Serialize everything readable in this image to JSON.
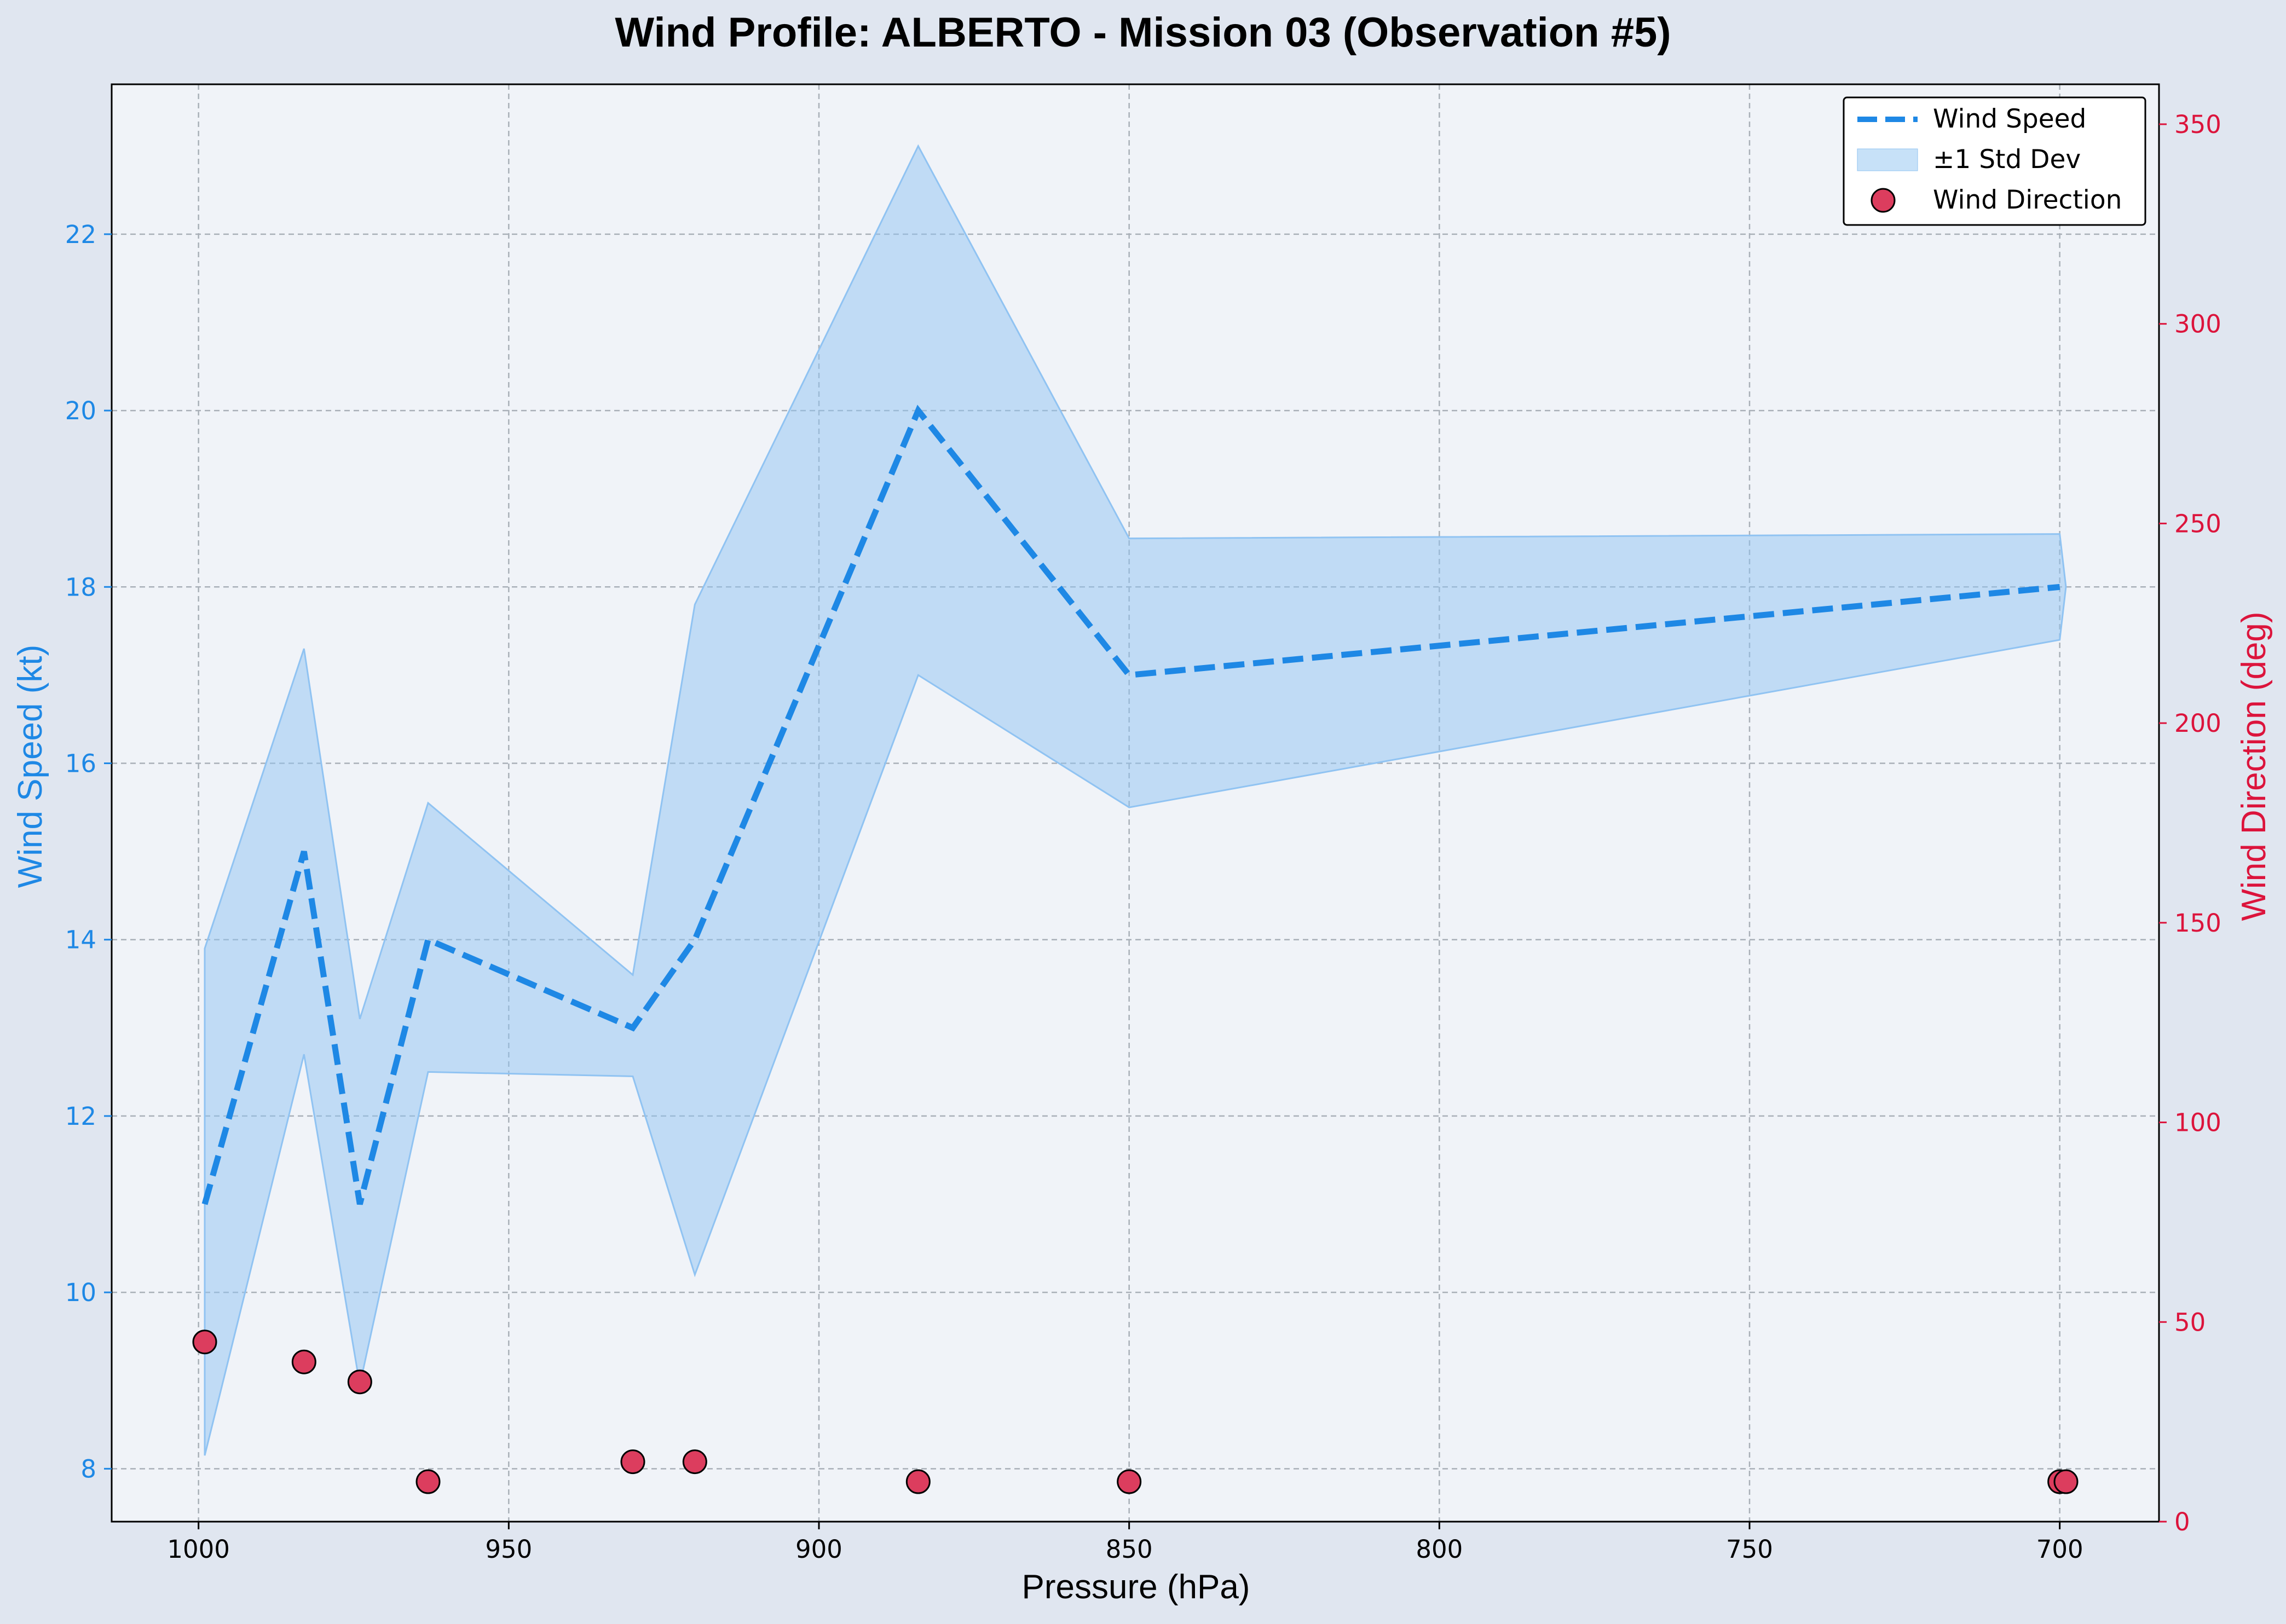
{
  "colors": {
    "background": "#e0e6f0",
    "plot_background": "#f0f3f8",
    "speed": "#1e88e5",
    "band": "#90c3f2",
    "direction_fill": "#dc3d5e",
    "direction_axis": "#dc143c",
    "grid": "#a9b0b8"
  },
  "chart_data": {
    "type": "line",
    "title": "Wind Profile: ALBERTO - Mission 03 (Observation #5)",
    "xlabel": "Pressure (hPa)",
    "ylabel": "Wind Speed (kt)",
    "y2label": "Wind Direction (deg)",
    "xlim": [
      1014,
      684
    ],
    "ylim": [
      7.4,
      23.7
    ],
    "y2lim": [
      0,
      360
    ],
    "x_inverted": true,
    "grid": true,
    "legend_position": "top-right",
    "x_ticks": [
      1000,
      950,
      900,
      850,
      800,
      750,
      700
    ],
    "y_ticks": [
      8,
      10,
      12,
      14,
      16,
      18,
      20,
      22
    ],
    "y2_ticks": [
      0,
      50,
      100,
      150,
      200,
      250,
      300,
      350
    ],
    "series": [
      {
        "name": "Wind Speed",
        "style": "dashed-line",
        "x": [
          999,
          983,
          974,
          963,
          930,
          920,
          884,
          850,
          700
        ],
        "y": [
          11,
          15,
          11,
          14,
          13,
          14,
          20,
          17,
          18
        ]
      },
      {
        "name": "±1 Std Dev",
        "style": "band",
        "x": [
          999,
          983,
          974,
          963,
          930,
          920,
          884,
          850,
          700,
          699
        ],
        "y_upper": [
          13.9,
          17.3,
          13.1,
          15.55,
          13.6,
          17.8,
          23.0,
          18.55,
          18.6,
          18.0
        ],
        "y_lower": [
          8.15,
          12.7,
          8.95,
          12.5,
          12.45,
          10.2,
          17.0,
          15.5,
          17.4,
          18.0
        ]
      },
      {
        "name": "Wind Direction",
        "style": "scatter",
        "axis": "right",
        "x": [
          999,
          983,
          974,
          963,
          930,
          920,
          884,
          850,
          700,
          699
        ],
        "y": [
          45,
          40,
          35,
          10,
          15,
          15,
          10,
          10,
          10,
          10
        ]
      }
    ]
  }
}
